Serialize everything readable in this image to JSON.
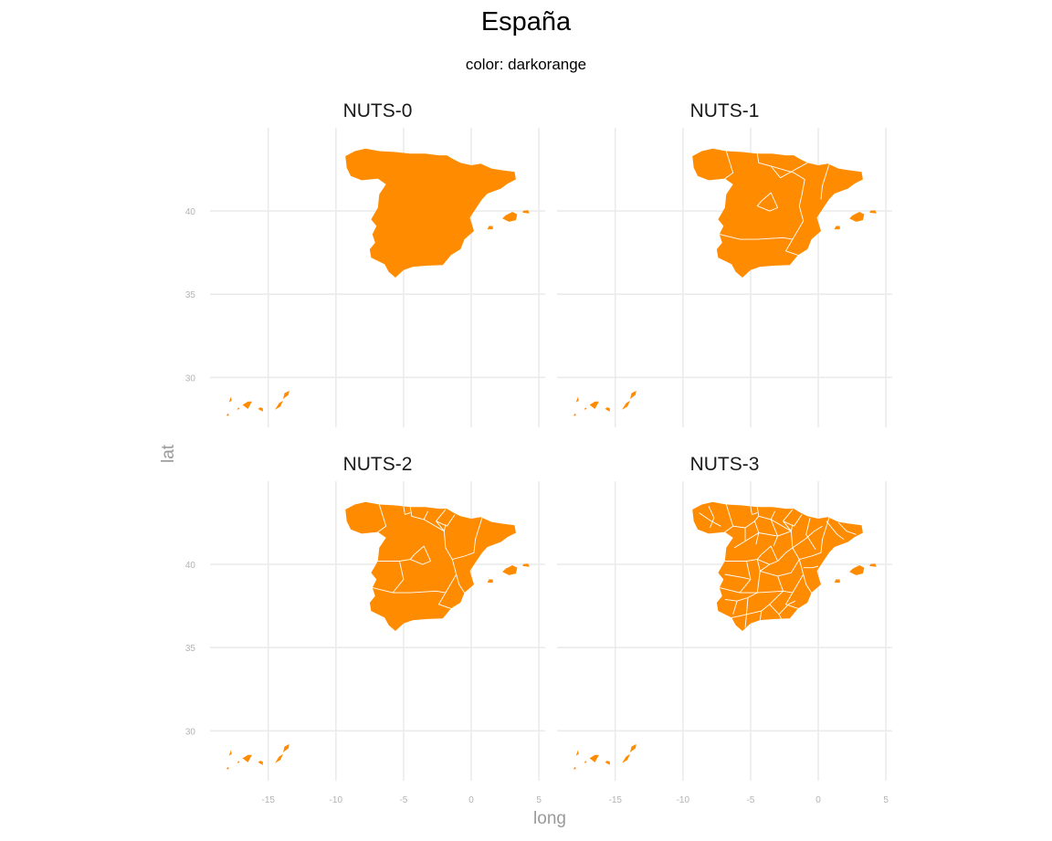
{
  "title": "España",
  "subtitle": "color: darkorange",
  "fill_color": "#FF8C00",
  "grid_color": "#EBEBEB",
  "x_axis_title": "long",
  "y_axis_title": "lat",
  "x_ticks": [
    -15,
    -10,
    -5,
    0,
    5
  ],
  "y_ticks": [
    30,
    35,
    40
  ],
  "panels": [
    {
      "label": "NUTS-0",
      "level": 0
    },
    {
      "label": "NUTS-1",
      "level": 1
    },
    {
      "label": "NUTS-2",
      "level": 2
    },
    {
      "label": "NUTS-3",
      "level": 3
    }
  ]
}
